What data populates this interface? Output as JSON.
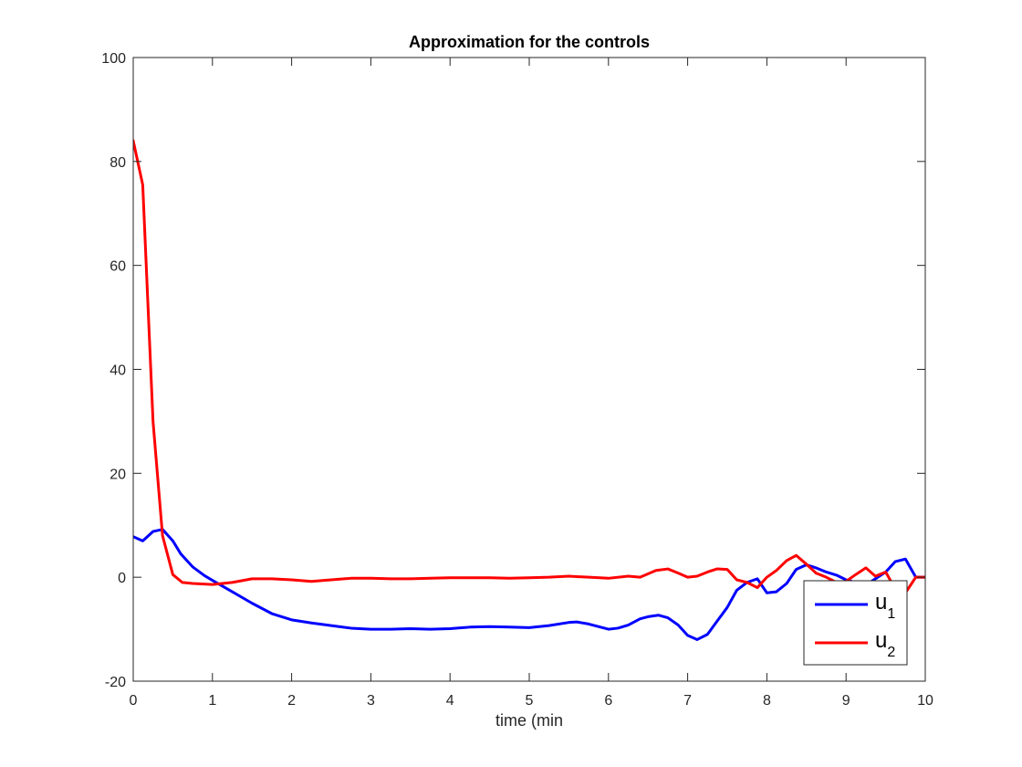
{
  "chart_data": {
    "type": "line",
    "title": "Approximation for the controls",
    "xlabel": "time (min",
    "ylabel": "",
    "xlim": [
      0,
      10
    ],
    "ylim": [
      -20,
      100
    ],
    "xticks": [
      0,
      1,
      2,
      3,
      4,
      5,
      6,
      7,
      8,
      9,
      10
    ],
    "yticks": [
      -20,
      0,
      20,
      40,
      60,
      80,
      100
    ],
    "grid": false,
    "legend_position": "bottom-right",
    "series": [
      {
        "name": "u",
        "name_sub": "1",
        "color": "#0000ff",
        "x": [
          0,
          0.12,
          0.25,
          0.37,
          0.5,
          0.6,
          0.75,
          0.9,
          1.0,
          1.25,
          1.5,
          1.75,
          2.0,
          2.25,
          2.5,
          2.75,
          3.0,
          3.25,
          3.5,
          3.75,
          4.0,
          4.25,
          4.5,
          4.75,
          5.0,
          5.25,
          5.5,
          5.6,
          5.75,
          6.0,
          6.12,
          6.25,
          6.4,
          6.5,
          6.63,
          6.75,
          6.88,
          7.0,
          7.12,
          7.25,
          7.37,
          7.5,
          7.62,
          7.75,
          7.88,
          8.0,
          8.12,
          8.25,
          8.37,
          8.5,
          8.62,
          8.75,
          8.88,
          9.0,
          9.12,
          9.25,
          9.37,
          9.5,
          9.62,
          9.75,
          9.88,
          10.0
        ],
        "y": [
          7.8,
          7.0,
          8.8,
          9.2,
          7.0,
          4.5,
          2.0,
          0.3,
          -0.6,
          -2.8,
          -5.0,
          -7.0,
          -8.2,
          -8.8,
          -9.3,
          -9.8,
          -10.0,
          -10.0,
          -9.9,
          -10.0,
          -9.9,
          -9.6,
          -9.5,
          -9.6,
          -9.7,
          -9.3,
          -8.7,
          -8.6,
          -9.0,
          -10.0,
          -9.8,
          -9.2,
          -8.0,
          -7.6,
          -7.3,
          -7.8,
          -9.2,
          -11.2,
          -12.0,
          -11.0,
          -8.5,
          -5.8,
          -2.5,
          -1.0,
          -0.3,
          -3.0,
          -2.8,
          -1.2,
          1.5,
          2.4,
          1.8,
          1.0,
          0.4,
          -0.5,
          -1.0,
          -1.5,
          -0.3,
          1.0,
          3.0,
          3.5,
          0.0,
          0.0
        ]
      },
      {
        "name": "u",
        "name_sub": "2",
        "color": "#ff0000",
        "x": [
          0,
          0.12,
          0.25,
          0.37,
          0.5,
          0.62,
          0.75,
          1.0,
          1.25,
          1.5,
          1.75,
          2.0,
          2.25,
          2.5,
          2.75,
          3.0,
          3.25,
          3.5,
          3.75,
          4.0,
          4.25,
          4.5,
          4.75,
          5.0,
          5.25,
          5.5,
          5.75,
          6.0,
          6.25,
          6.4,
          6.6,
          6.75,
          6.88,
          7.0,
          7.12,
          7.25,
          7.37,
          7.5,
          7.62,
          7.75,
          7.88,
          8.0,
          8.12,
          8.25,
          8.37,
          8.5,
          8.62,
          8.75,
          8.88,
          9.0,
          9.12,
          9.25,
          9.37,
          9.5,
          9.62,
          9.75,
          9.88,
          10.0
        ],
        "y": [
          84.0,
          75.5,
          30.0,
          8.0,
          0.5,
          -1.0,
          -1.2,
          -1.4,
          -1.0,
          -0.3,
          -0.3,
          -0.5,
          -0.8,
          -0.5,
          -0.2,
          -0.2,
          -0.3,
          -0.3,
          -0.2,
          -0.1,
          -0.1,
          -0.1,
          -0.2,
          -0.1,
          0.0,
          0.2,
          0.0,
          -0.2,
          0.2,
          0.0,
          1.3,
          1.6,
          0.8,
          0.0,
          0.2,
          1.0,
          1.6,
          1.5,
          -0.5,
          -1.0,
          -2.0,
          0.0,
          1.3,
          3.2,
          4.2,
          2.5,
          0.8,
          0.0,
          -1.0,
          -0.8,
          0.5,
          1.8,
          0.2,
          1.0,
          -2.2,
          -3.0,
          0.0,
          0.0
        ]
      }
    ]
  }
}
